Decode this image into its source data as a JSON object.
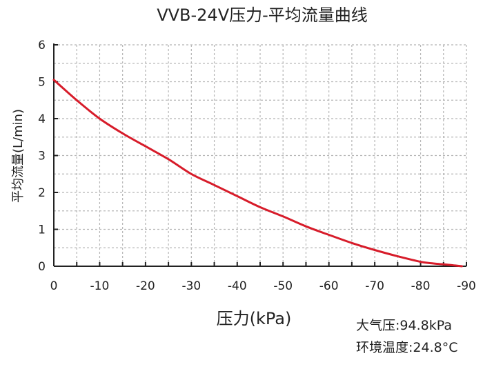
{
  "chart_data": {
    "type": "line",
    "title": "VVB-24V压力-平均流量曲线",
    "xlabel": "压力(kPa)",
    "ylabel": "平均流量(L/min)",
    "xlim": [
      0,
      -90
    ],
    "ylim": [
      0,
      6
    ],
    "x_ticks": [
      "0",
      "-10",
      "-20",
      "-30",
      "-40",
      "-50",
      "-60",
      "-70",
      "-80",
      "-90"
    ],
    "y_ticks": [
      "0",
      "1",
      "2",
      "3",
      "4",
      "5",
      "6"
    ],
    "grid": true,
    "series": [
      {
        "color": "#d71c2a",
        "x": [
          0,
          -5,
          -10,
          -15,
          -20,
          -25,
          -30,
          -35,
          -40,
          -45,
          -50,
          -55,
          -60,
          -65,
          -70,
          -75,
          -80,
          -82.5,
          -85,
          -87.5,
          -89
        ],
        "y": [
          5.05,
          4.5,
          4.0,
          3.6,
          3.25,
          2.9,
          2.5,
          2.2,
          1.9,
          1.6,
          1.35,
          1.08,
          0.85,
          0.63,
          0.44,
          0.27,
          0.12,
          0.08,
          0.05,
          0.02,
          0.0
        ]
      }
    ],
    "annotations": [
      "大气压:94.8kPa",
      "环境温度:24.8°C"
    ]
  }
}
